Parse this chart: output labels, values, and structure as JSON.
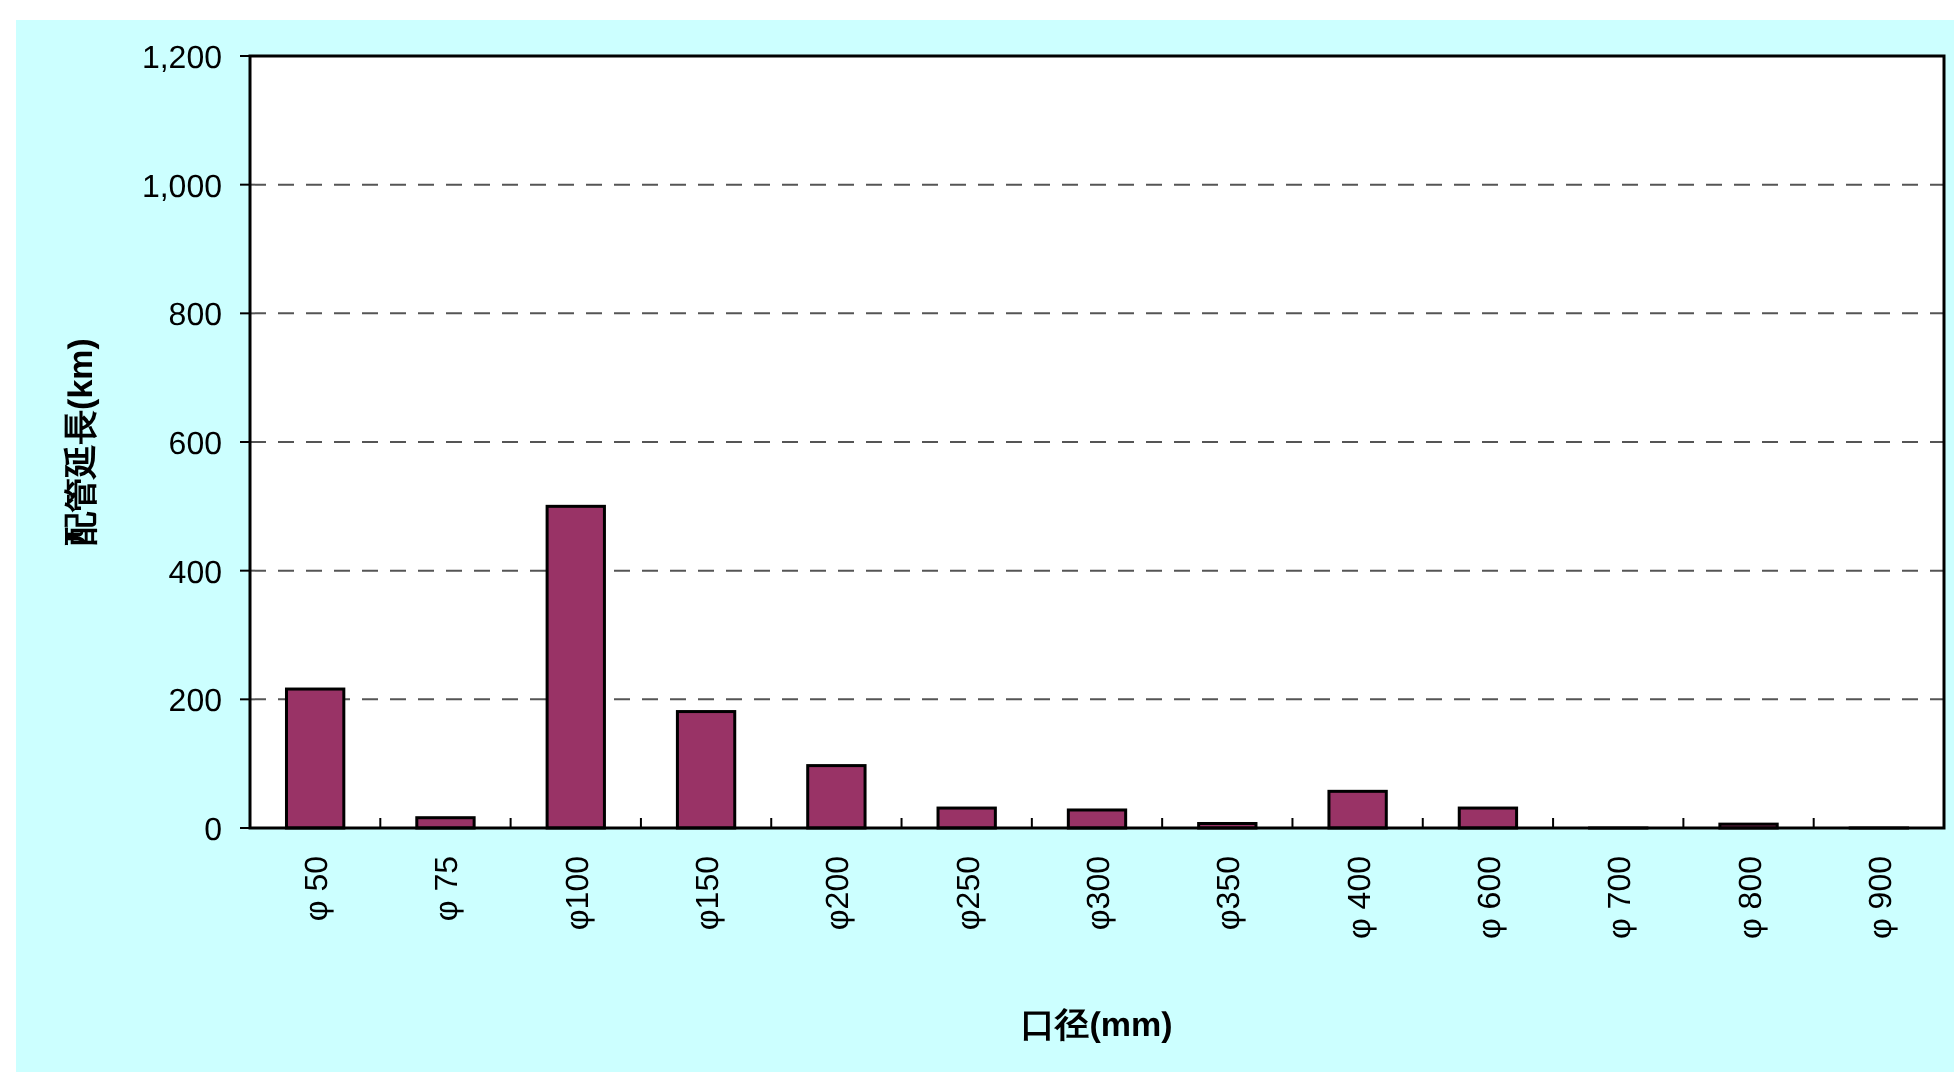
{
  "chart_data": {
    "type": "bar",
    "xlabel": "口径(mm)",
    "ylabel": "配管延長(km)",
    "categories": [
      "φ 50",
      "φ 75",
      "φ100",
      "φ150",
      "φ200",
      "φ250",
      "φ300",
      "φ350",
      "φ 400",
      "φ 600",
      "φ 700",
      "φ 800",
      "φ 900"
    ],
    "values": [
      216,
      16,
      500,
      181,
      97,
      31,
      28,
      7,
      57,
      31,
      0,
      6,
      0
    ],
    "color": "#993366",
    "ylim": [
      0,
      1200
    ],
    "yticks": [
      {
        "value": 0,
        "label": "0"
      },
      {
        "value": 200,
        "label": "200"
      },
      {
        "value": 400,
        "label": "400"
      },
      {
        "value": 600,
        "label": "600"
      },
      {
        "value": 800,
        "label": "800"
      },
      {
        "value": 1000,
        "label": "1,000"
      },
      {
        "value": 1200,
        "label": "1,200"
      }
    ],
    "grid": "y"
  }
}
